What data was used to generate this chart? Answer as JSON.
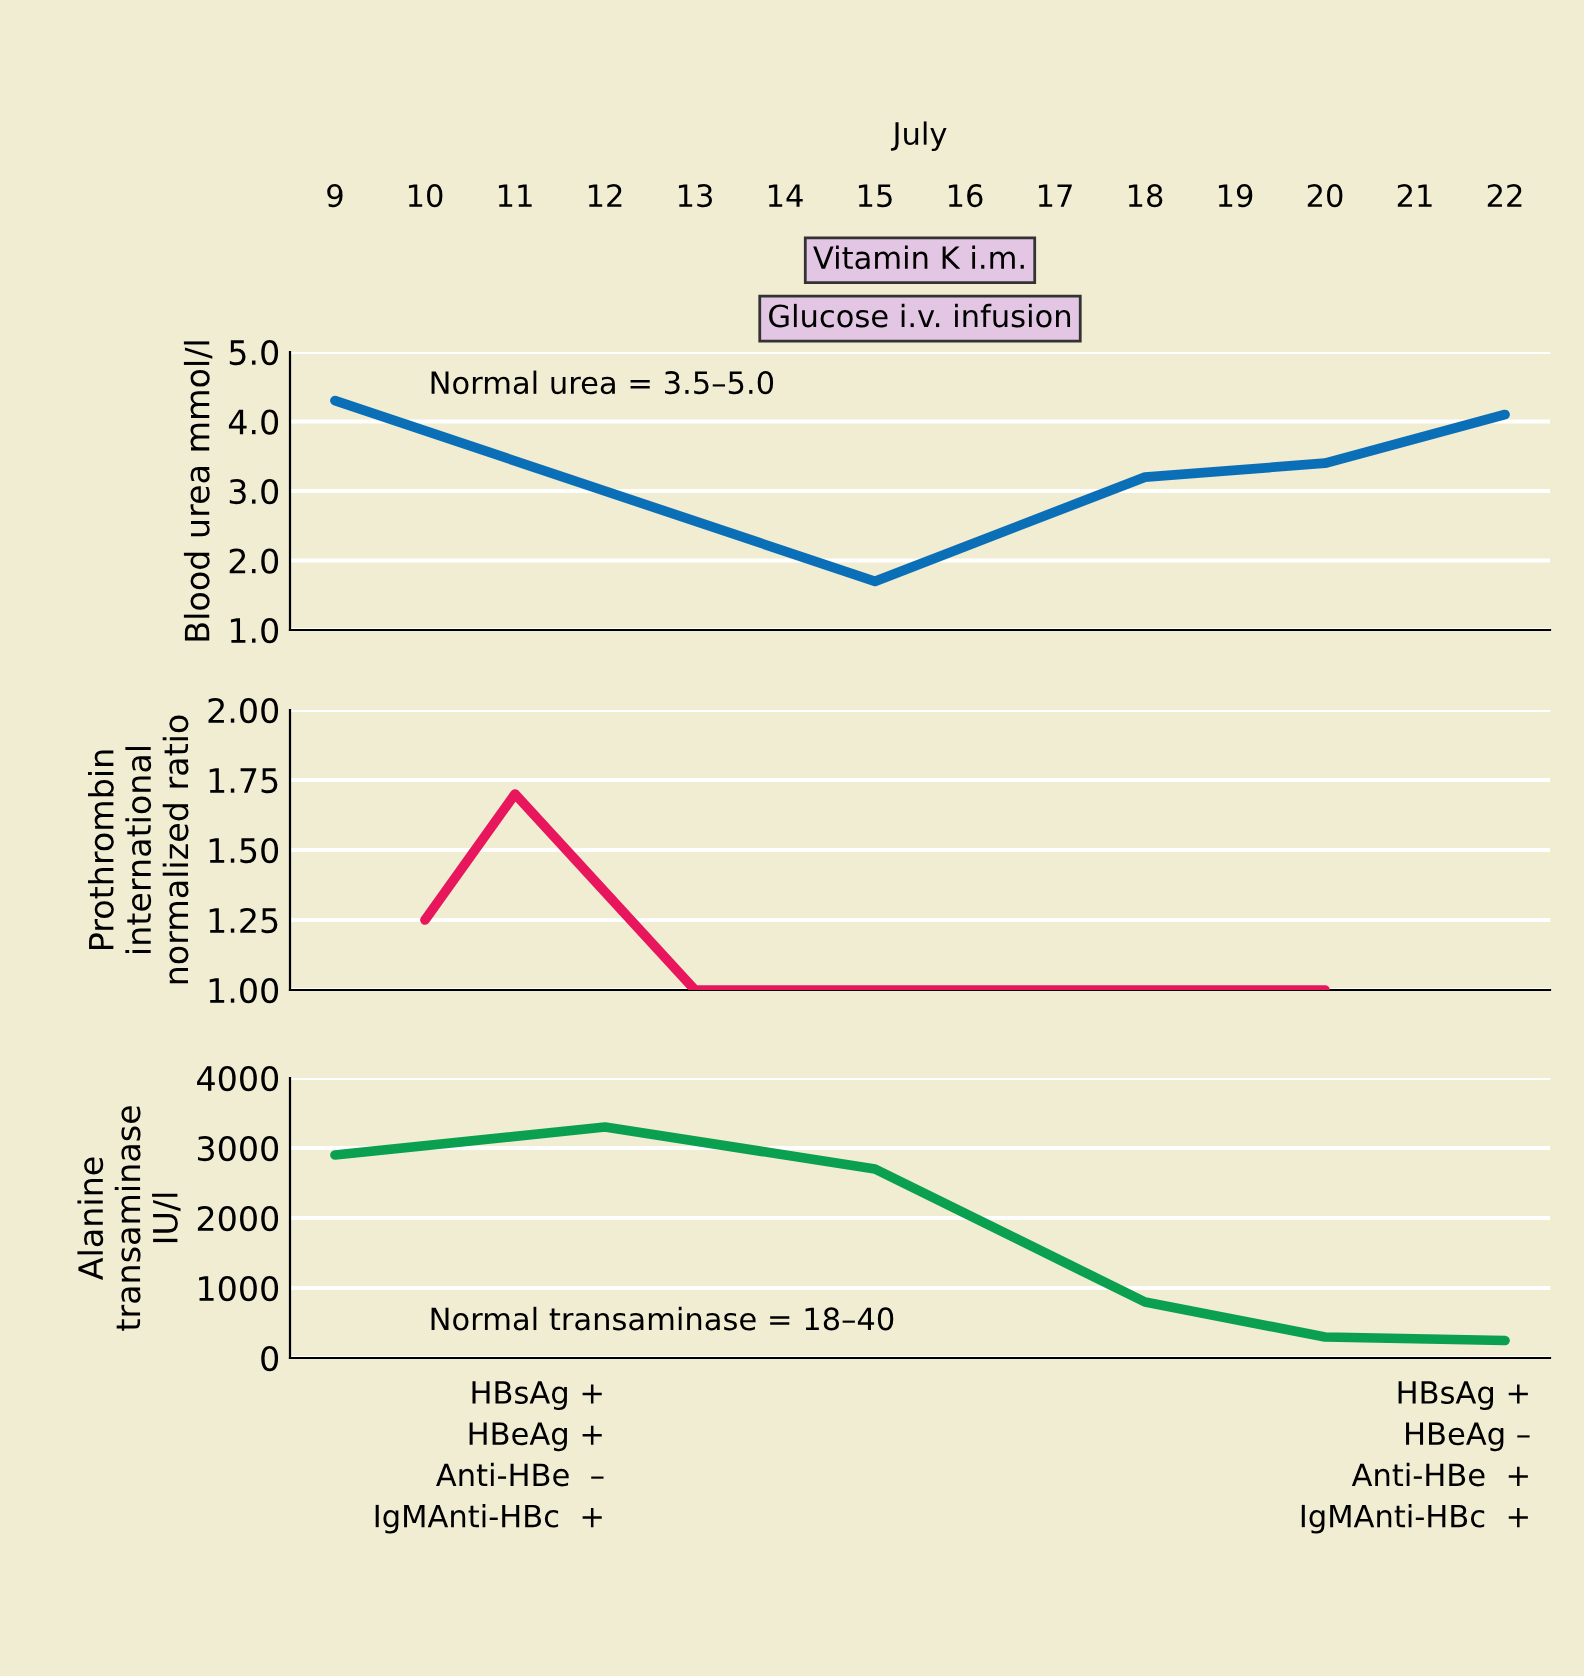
{
  "chart_data": [
    {
      "type": "line",
      "xlabel": "July",
      "ylabel": "Blood urea mmol/l",
      "categories": [
        "9",
        "10",
        "11",
        "12",
        "13",
        "14",
        "15",
        "16",
        "17",
        "18",
        "19",
        "20",
        "21",
        "22"
      ],
      "series": [
        {
          "color": "#0b6fb8",
          "x": [
            "9",
            "15",
            "18",
            "20",
            "22"
          ],
          "values": [
            4.3,
            1.7,
            3.2,
            3.4,
            4.1
          ]
        }
      ],
      "ylim": [
        1.0,
        5.0
      ],
      "yticks": [
        {
          "value": 1,
          "label": "1.0"
        },
        {
          "value": 2,
          "label": "2.0"
        },
        {
          "value": 3,
          "label": "3.0"
        },
        {
          "value": 4,
          "label": "4.0"
        },
        {
          "value": 5,
          "label": "5.0"
        }
      ],
      "grid": "y",
      "marker": "none",
      "line_style": "solid",
      "annotations": [
        "Vitamin K i.m.",
        "Glucose i.v. infusion",
        "Normal urea = 3.5–5.0"
      ]
    },
    {
      "type": "line",
      "ylabel": "Prothrombin\ninternational\nnormalized ratio",
      "categories": [
        "9",
        "10",
        "11",
        "12",
        "13",
        "14",
        "15",
        "16",
        "17",
        "18",
        "19",
        "20",
        "21",
        "22"
      ],
      "series": [
        {
          "color": "#e8175d",
          "x": [
            "10",
            "11",
            "13",
            "20"
          ],
          "values": [
            1.25,
            1.7,
            1.0,
            1.0
          ]
        }
      ],
      "ylim": [
        1.0,
        2.0
      ],
      "yticks": [
        {
          "value": 1,
          "label": "1.00"
        },
        {
          "value": 1.25,
          "label": "1.25"
        },
        {
          "value": 1.5,
          "label": "1.50"
        },
        {
          "value": 1.75,
          "label": "1.75"
        },
        {
          "value": 2,
          "label": "2.00"
        }
      ],
      "grid": "y",
      "marker": "none",
      "line_style": "solid",
      "tick_labels": "y"
    },
    {
      "type": "line",
      "ylabel": "Alanine\ntransaminase\nIU/l",
      "categories": [
        "9",
        "10",
        "11",
        "12",
        "13",
        "14",
        "15",
        "16",
        "17",
        "18",
        "19",
        "20",
        "21",
        "22"
      ],
      "series": [
        {
          "color": "#0aa050",
          "x": [
            "9",
            "12",
            "15",
            "18",
            "20",
            "22"
          ],
          "values": [
            2900,
            3300,
            2700,
            800,
            300,
            250
          ]
        }
      ],
      "ylim": [
        0,
        4000
      ],
      "yticks": [
        0,
        1000,
        2000,
        3000,
        4000
      ],
      "grid": "y",
      "marker": "none",
      "line_style": "solid",
      "tick_labels": "y",
      "annotations": [
        "Normal transaminase = 18–40",
        "HBsAg +\nHBeAg +\nAnti-HBe  –\nIgMAnti-HBc  +",
        "HBsAg +\nHBeAg –\nAnti-HBe  +\nIgMAnti-HBc  +"
      ]
    }
  ]
}
